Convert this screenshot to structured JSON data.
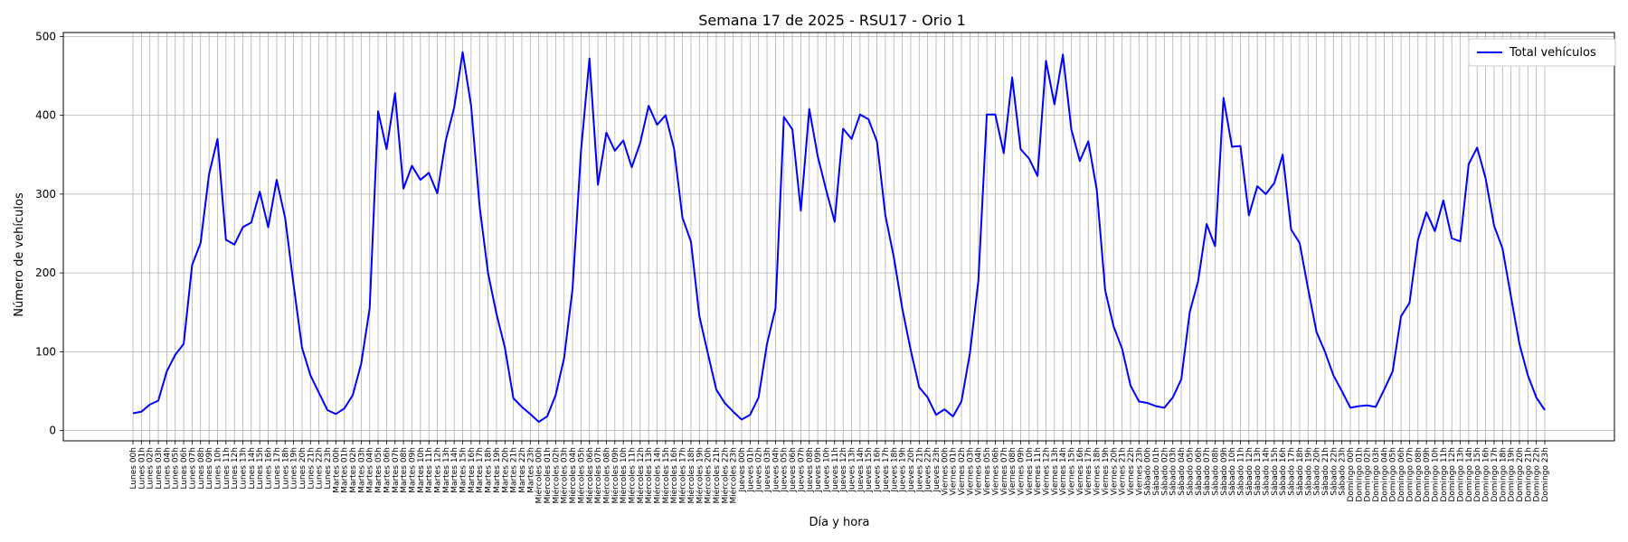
{
  "chart_data": {
    "type": "line",
    "title": "Semana 17 de 2025 - RSU17 - Orio 1",
    "xlabel": "Día y hora",
    "ylabel": "Número de vehículos",
    "ylim": [
      -13,
      505
    ],
    "yticks": [
      0,
      100,
      200,
      300,
      400,
      500
    ],
    "grid": true,
    "legend_position": "top-right",
    "categories": [
      "Lunes 00h",
      "Lunes 01h",
      "Lunes 02h",
      "Lunes 03h",
      "Lunes 04h",
      "Lunes 05h",
      "Lunes 06h",
      "Lunes 07h",
      "Lunes 08h",
      "Lunes 09h",
      "Lunes 10h",
      "Lunes 11h",
      "Lunes 12h",
      "Lunes 13h",
      "Lunes 14h",
      "Lunes 15h",
      "Lunes 16h",
      "Lunes 17h",
      "Lunes 18h",
      "Lunes 19h",
      "Lunes 20h",
      "Lunes 21h",
      "Lunes 22h",
      "Lunes 23h",
      "Martes 00h",
      "Martes 01h",
      "Martes 02h",
      "Martes 03h",
      "Martes 04h",
      "Martes 05h",
      "Martes 06h",
      "Martes 07h",
      "Martes 08h",
      "Martes 09h",
      "Martes 10h",
      "Martes 11h",
      "Martes 12h",
      "Martes 13h",
      "Martes 14h",
      "Martes 15h",
      "Martes 16h",
      "Martes 17h",
      "Martes 18h",
      "Martes 19h",
      "Martes 20h",
      "Martes 21h",
      "Martes 22h",
      "Martes 23h",
      "Miércoles 00h",
      "Miércoles 01h",
      "Miércoles 02h",
      "Miércoles 03h",
      "Miércoles 04h",
      "Miércoles 05h",
      "Miércoles 06h",
      "Miércoles 07h",
      "Miércoles 08h",
      "Miércoles 09h",
      "Miércoles 10h",
      "Miércoles 11h",
      "Miércoles 12h",
      "Miércoles 13h",
      "Miércoles 14h",
      "Miércoles 15h",
      "Miércoles 16h",
      "Miércoles 17h",
      "Miércoles 18h",
      "Miércoles 19h",
      "Miércoles 20h",
      "Miércoles 21h",
      "Miércoles 22h",
      "Miércoles 23h",
      "Jueves 00h",
      "Jueves 01h",
      "Jueves 02h",
      "Jueves 03h",
      "Jueves 04h",
      "Jueves 05h",
      "Jueves 06h",
      "Jueves 07h",
      "Jueves 08h",
      "Jueves 09h",
      "Jueves 10h",
      "Jueves 11h",
      "Jueves 12h",
      "Jueves 13h",
      "Jueves 14h",
      "Jueves 15h",
      "Jueves 16h",
      "Jueves 17h",
      "Jueves 18h",
      "Jueves 19h",
      "Jueves 20h",
      "Jueves 21h",
      "Jueves 22h",
      "Jueves 23h",
      "Viernes 00h",
      "Viernes 01h",
      "Viernes 02h",
      "Viernes 03h",
      "Viernes 04h",
      "Viernes 05h",
      "Viernes 06h",
      "Viernes 07h",
      "Viernes 08h",
      "Viernes 09h",
      "Viernes 10h",
      "Viernes 11h",
      "Viernes 12h",
      "Viernes 13h",
      "Viernes 14h",
      "Viernes 15h",
      "Viernes 16h",
      "Viernes 17h",
      "Viernes 18h",
      "Viernes 19h",
      "Viernes 20h",
      "Viernes 21h",
      "Viernes 22h",
      "Viernes 23h",
      "Sábado 00h",
      "Sábado 01h",
      "Sábado 02h",
      "Sábado 03h",
      "Sábado 04h",
      "Sábado 05h",
      "Sábado 06h",
      "Sábado 07h",
      "Sábado 08h",
      "Sábado 09h",
      "Sábado 10h",
      "Sábado 11h",
      "Sábado 12h",
      "Sábado 13h",
      "Sábado 14h",
      "Sábado 15h",
      "Sábado 16h",
      "Sábado 17h",
      "Sábado 18h",
      "Sábado 19h",
      "Sábado 20h",
      "Sábado 21h",
      "Sábado 22h",
      "Sábado 23h",
      "Domingo 00h",
      "Domingo 01h",
      "Domingo 02h",
      "Domingo 03h",
      "Domingo 04h",
      "Domingo 05h",
      "Domingo 06h",
      "Domingo 07h",
      "Domingo 08h",
      "Domingo 09h",
      "Domingo 10h",
      "Domingo 11h",
      "Domingo 12h",
      "Domingo 13h",
      "Domingo 14h",
      "Domingo 15h",
      "Domingo 16h",
      "Domingo 17h",
      "Domingo 18h",
      "Domingo 19h",
      "Domingo 20h",
      "Domingo 21h",
      "Domingo 22h",
      "Domingo 23h"
    ],
    "series": [
      {
        "name": "Total vehículos",
        "color": "#0000ff",
        "values": [
          22,
          24,
          33,
          38,
          75,
          96,
          110,
          210,
          238,
          325,
          370,
          242,
          236,
          258,
          264,
          303,
          258,
          318,
          270,
          185,
          105,
          70,
          48,
          26,
          21,
          28,
          45,
          85,
          155,
          405,
          357,
          428,
          307,
          336,
          318,
          327,
          301,
          368,
          410,
          480,
          412,
          285,
          200,
          148,
          105,
          41,
          30,
          21,
          11,
          18,
          45,
          92,
          180,
          355,
          472,
          312,
          378,
          355,
          368,
          334,
          365,
          412,
          388,
          400,
          358,
          270,
          240,
          145,
          98,
          52,
          35,
          24,
          14,
          20,
          42,
          110,
          155,
          398,
          382,
          279,
          408,
          348,
          305,
          265,
          383,
          370,
          401,
          395,
          367,
          273,
          220,
          155,
          102,
          55,
          42,
          20,
          27,
          18,
          37,
          98,
          190,
          401,
          401,
          352,
          448,
          357,
          345,
          323,
          469,
          414,
          477,
          382,
          342,
          367,
          306,
          178,
          132,
          104,
          57,
          37,
          35,
          31,
          29,
          42,
          65,
          150,
          190,
          262,
          234,
          422,
          360,
          361,
          273,
          310,
          300,
          314,
          350,
          255,
          238,
          180,
          125,
          100,
          70,
          50,
          29,
          31,
          32,
          30,
          52,
          75,
          145,
          162,
          242,
          277,
          253,
          292,
          244,
          240,
          338,
          359,
          320,
          260,
          231,
          170,
          110,
          70,
          42,
          26
        ]
      }
    ]
  }
}
